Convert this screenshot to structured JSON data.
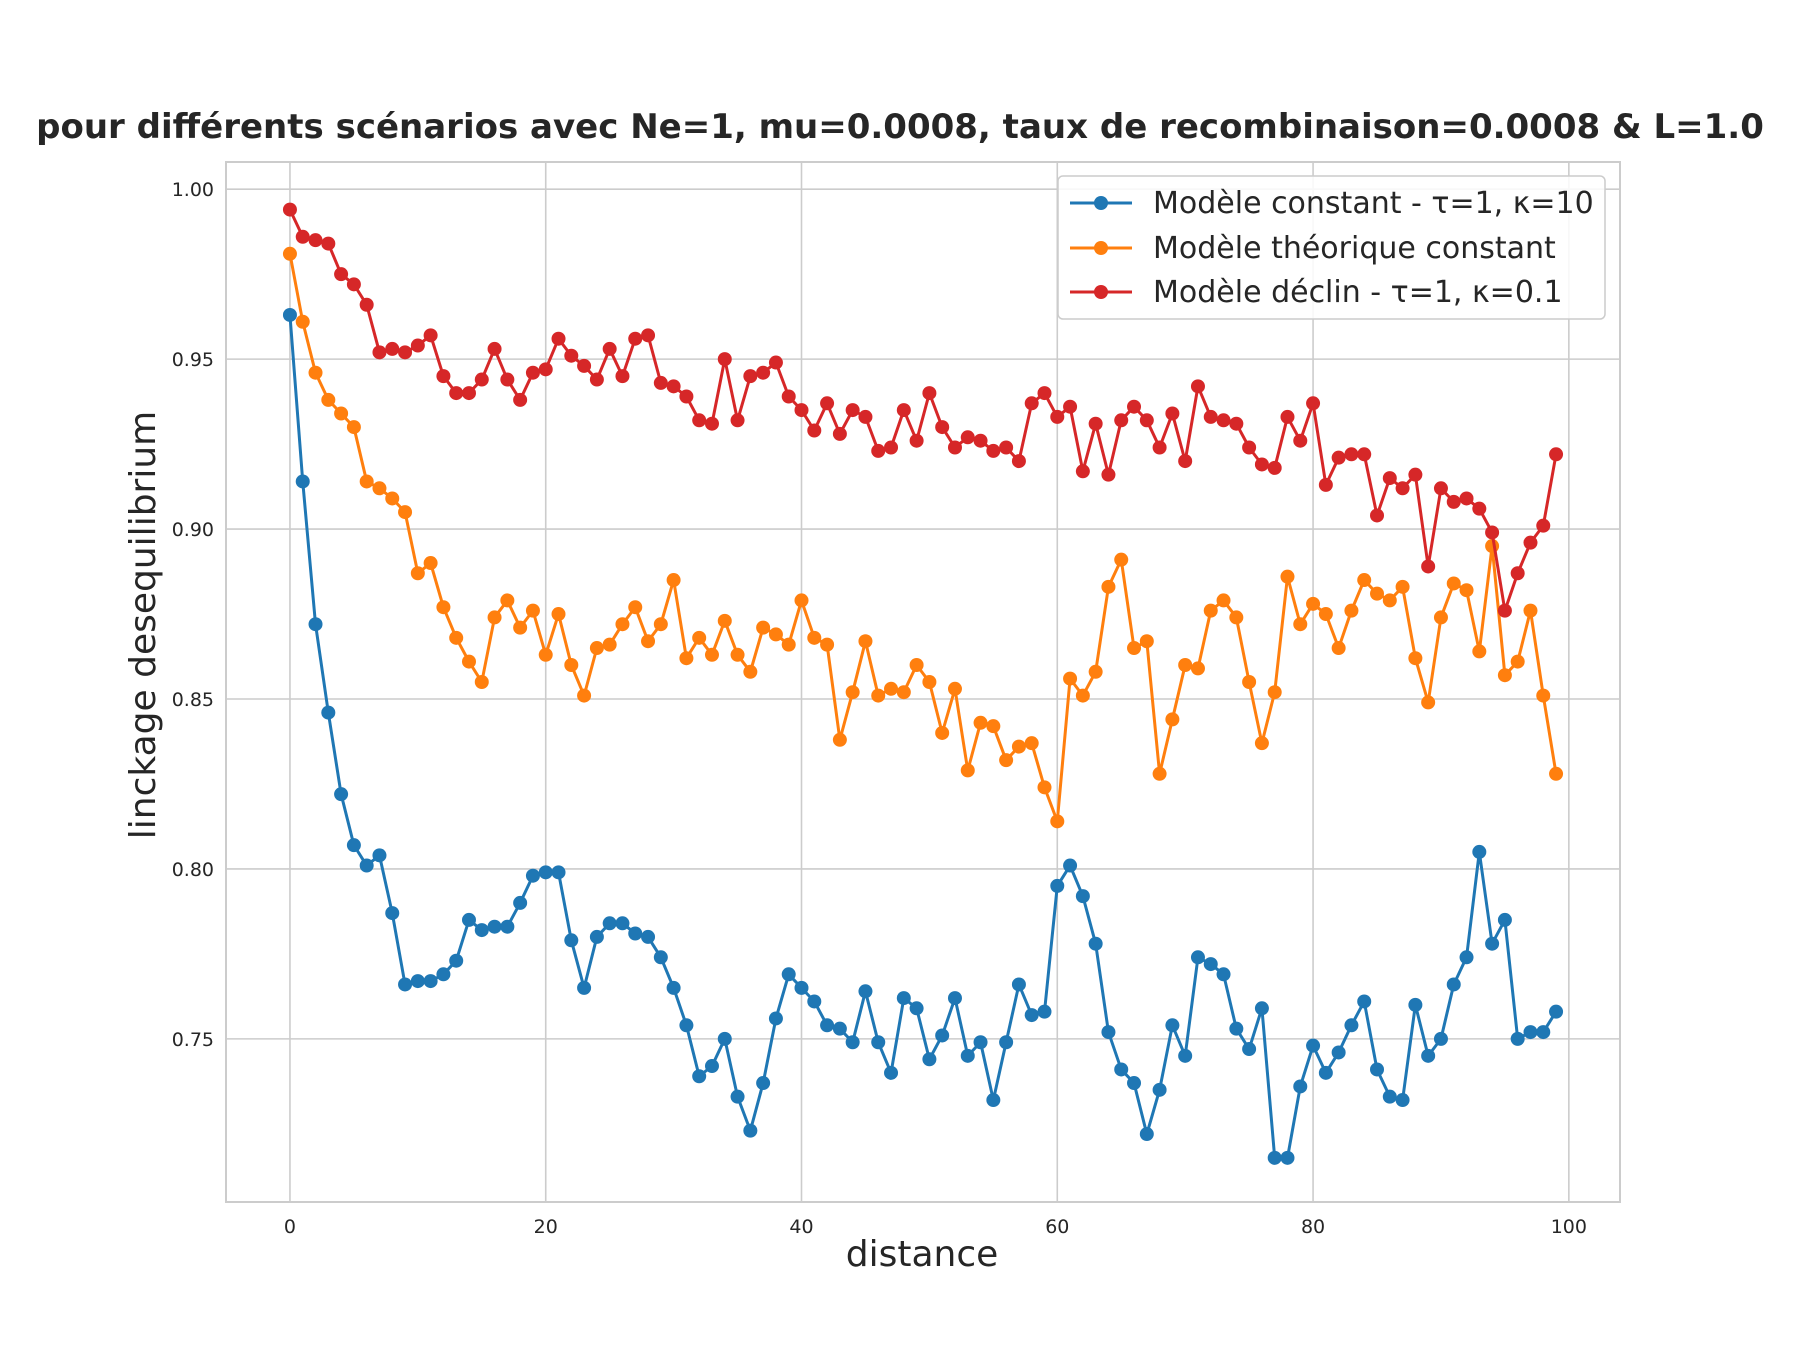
{
  "chart_data": {
    "type": "line",
    "title": "pour différents scénarios avec Ne=1, mu=0.0008, taux de recombinaison=0.0008 & L=1.0",
    "xlabel": "distance",
    "ylabel": "linckage desequilibrium",
    "xlim": [
      -5,
      104
    ],
    "ylim": [
      0.702,
      1.008
    ],
    "xticks": [
      0,
      20,
      40,
      60,
      80,
      100
    ],
    "yticks": [
      0.75,
      0.8,
      0.85,
      0.9,
      0.95,
      1.0
    ],
    "xtick_labels": [
      "0",
      "20",
      "40",
      "60",
      "80",
      "100"
    ],
    "ytick_labels": [
      "0.75",
      "0.80",
      "0.85",
      "0.90",
      "0.95",
      "1.00"
    ],
    "grid": true,
    "legend_position": "top-right",
    "series": [
      {
        "name": "Modèle constant - τ=1, κ=10",
        "color": "#1f77b4",
        "values": [
          0.963,
          0.914,
          0.872,
          0.846,
          0.822,
          0.807,
          0.801,
          0.804,
          0.787,
          0.766,
          0.767,
          0.767,
          0.769,
          0.773,
          0.785,
          0.782,
          0.783,
          0.783,
          0.79,
          0.798,
          0.799,
          0.799,
          0.779,
          0.765,
          0.78,
          0.784,
          0.784,
          0.781,
          0.78,
          0.774,
          0.765,
          0.754,
          0.739,
          0.742,
          0.75,
          0.733,
          0.723,
          0.737,
          0.756,
          0.769,
          0.765,
          0.761,
          0.754,
          0.753,
          0.749,
          0.764,
          0.749,
          0.74,
          0.762,
          0.759,
          0.744,
          0.751,
          0.762,
          0.745,
          0.749,
          0.732,
          0.749,
          0.766,
          0.757,
          0.758,
          0.795,
          0.801,
          0.792,
          0.778,
          0.752,
          0.741,
          0.737,
          0.722,
          0.735,
          0.754,
          0.745,
          0.774,
          0.772,
          0.769,
          0.753,
          0.747,
          0.759,
          0.715,
          0.715,
          0.736,
          0.748,
          0.74,
          0.746,
          0.754,
          0.761,
          0.741,
          0.733,
          0.732,
          0.76,
          0.745,
          0.75,
          0.766,
          0.774,
          0.805,
          0.778,
          0.785,
          0.75,
          0.752,
          0.752,
          0.758
        ]
      },
      {
        "name": "Modèle théorique constant",
        "color": "#ff7f0e",
        "values": [
          0.981,
          0.961,
          0.946,
          0.938,
          0.934,
          0.93,
          0.914,
          0.912,
          0.909,
          0.905,
          0.887,
          0.89,
          0.877,
          0.868,
          0.861,
          0.855,
          0.874,
          0.879,
          0.871,
          0.876,
          0.863,
          0.875,
          0.86,
          0.851,
          0.865,
          0.866,
          0.872,
          0.877,
          0.867,
          0.872,
          0.885,
          0.862,
          0.868,
          0.863,
          0.873,
          0.863,
          0.858,
          0.871,
          0.869,
          0.866,
          0.879,
          0.868,
          0.866,
          0.838,
          0.852,
          0.867,
          0.851,
          0.853,
          0.852,
          0.86,
          0.855,
          0.84,
          0.853,
          0.829,
          0.843,
          0.842,
          0.832,
          0.836,
          0.837,
          0.824,
          0.814,
          0.856,
          0.851,
          0.858,
          0.883,
          0.891,
          0.865,
          0.867,
          0.828,
          0.844,
          0.86,
          0.859,
          0.876,
          0.879,
          0.874,
          0.855,
          0.837,
          0.852,
          0.886,
          0.872,
          0.878,
          0.875,
          0.865,
          0.876,
          0.885,
          0.881,
          0.879,
          0.883,
          0.862,
          0.849,
          0.874,
          0.884,
          0.882,
          0.864,
          0.895,
          0.857,
          0.861,
          0.876,
          0.851,
          0.828
        ]
      },
      {
        "name": "Modèle déclin - τ=1, κ=0.1",
        "color": "#d62728",
        "values": [
          0.994,
          0.986,
          0.985,
          0.984,
          0.975,
          0.972,
          0.966,
          0.952,
          0.953,
          0.952,
          0.954,
          0.957,
          0.945,
          0.94,
          0.94,
          0.944,
          0.953,
          0.944,
          0.938,
          0.946,
          0.947,
          0.956,
          0.951,
          0.948,
          0.944,
          0.953,
          0.945,
          0.956,
          0.957,
          0.943,
          0.942,
          0.939,
          0.932,
          0.931,
          0.95,
          0.932,
          0.945,
          0.946,
          0.949,
          0.939,
          0.935,
          0.929,
          0.937,
          0.928,
          0.935,
          0.933,
          0.923,
          0.924,
          0.935,
          0.926,
          0.94,
          0.93,
          0.924,
          0.927,
          0.926,
          0.923,
          0.924,
          0.92,
          0.937,
          0.94,
          0.933,
          0.936,
          0.917,
          0.931,
          0.916,
          0.932,
          0.936,
          0.932,
          0.924,
          0.934,
          0.92,
          0.942,
          0.933,
          0.932,
          0.931,
          0.924,
          0.919,
          0.918,
          0.933,
          0.926,
          0.937,
          0.913,
          0.921,
          0.922,
          0.922,
          0.904,
          0.915,
          0.912,
          0.916,
          0.889,
          0.912,
          0.908,
          0.909,
          0.906,
          0.899,
          0.876,
          0.887,
          0.896,
          0.901,
          0.922
        ]
      }
    ]
  }
}
